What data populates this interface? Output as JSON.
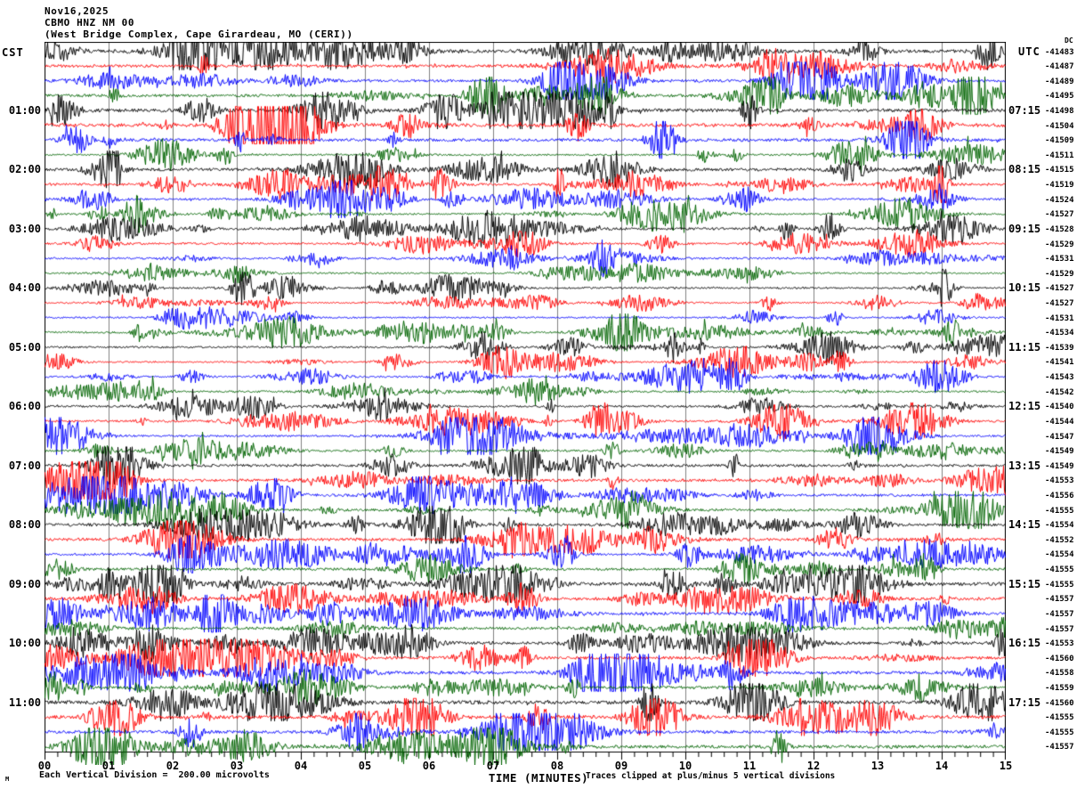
{
  "title": {
    "date": "Nov16,2025",
    "station": "CBMO HNZ NM 00",
    "location": "(West Bridge Complex, Cape Girardeau, MO (CERI))"
  },
  "left_axis": {
    "header": "CST",
    "labels": [
      {
        "row": 4,
        "text": "01:00"
      },
      {
        "row": 8,
        "text": "02:00"
      },
      {
        "row": 12,
        "text": "03:00"
      },
      {
        "row": 16,
        "text": "04:00"
      },
      {
        "row": 20,
        "text": "05:00"
      },
      {
        "row": 24,
        "text": "06:00"
      },
      {
        "row": 28,
        "text": "07:00"
      },
      {
        "row": 32,
        "text": "08:00"
      },
      {
        "row": 36,
        "text": "09:00"
      },
      {
        "row": 40,
        "text": "10:00"
      },
      {
        "row": 44,
        "text": "11:00"
      }
    ]
  },
  "right_axis": {
    "header": "UTC",
    "dc_header": "DC",
    "labels": [
      {
        "row": 4,
        "text": "07:15"
      },
      {
        "row": 8,
        "text": "08:15"
      },
      {
        "row": 12,
        "text": "09:15"
      },
      {
        "row": 16,
        "text": "10:15"
      },
      {
        "row": 20,
        "text": "11:15"
      },
      {
        "row": 24,
        "text": "12:15"
      },
      {
        "row": 28,
        "text": "13:15"
      },
      {
        "row": 32,
        "text": "14:15"
      },
      {
        "row": 36,
        "text": "15:15"
      },
      {
        "row": 40,
        "text": "16:15"
      },
      {
        "row": 44,
        "text": "17:15"
      }
    ]
  },
  "x_axis": {
    "tick_labels": [
      "00",
      "01",
      "02",
      "03",
      "04",
      "05",
      "06",
      "07",
      "08",
      "09",
      "10",
      "11",
      "12",
      "13",
      "14",
      "15"
    ],
    "label": "TIME (MINUTES)"
  },
  "footer": {
    "watermark": "M",
    "scale_note": "Each Vertical Division =  200.00 microvolts",
    "clip_note": "Traces clipped at plus/minus 5 vertical divisions"
  },
  "colors": {
    "trace_cycle": [
      "#000000",
      "#ff0000",
      "#0000ff",
      "#006400"
    ],
    "gridline": "#808080",
    "border": "#000000"
  },
  "chart_data": {
    "type": "line",
    "subtype": "helicorder-seismogram",
    "x_range_minutes": [
      0,
      15
    ],
    "minutes_per_row": 15,
    "rows_total": 48,
    "grid": "vertical gridlines at each minute",
    "legend_position": "none",
    "rows": [
      {
        "color": "#000000",
        "dc": -41483,
        "activity": 1.6
      },
      {
        "color": "#ff0000",
        "dc": -41487,
        "activity": 1.4
      },
      {
        "color": "#0000ff",
        "dc": -41489,
        "activity": 1.3
      },
      {
        "color": "#006400",
        "dc": -41495,
        "activity": 1.4
      },
      {
        "color": "#000000",
        "dc": -41498,
        "activity": 1.7
      },
      {
        "color": "#ff0000",
        "dc": -41504,
        "activity": 1.8
      },
      {
        "color": "#0000ff",
        "dc": -41509,
        "activity": 1.5
      },
      {
        "color": "#006400",
        "dc": -41511,
        "activity": 0.9
      },
      {
        "color": "#000000",
        "dc": -41515,
        "activity": 1.5
      },
      {
        "color": "#ff0000",
        "dc": -41519,
        "activity": 1.3
      },
      {
        "color": "#0000ff",
        "dc": -41524,
        "activity": 1.0
      },
      {
        "color": "#006400",
        "dc": -41527,
        "activity": 0.9
      },
      {
        "color": "#000000",
        "dc": -41528,
        "activity": 1.2
      },
      {
        "color": "#ff0000",
        "dc": -41529,
        "activity": 1.0
      },
      {
        "color": "#0000ff",
        "dc": -41531,
        "activity": 1.0
      },
      {
        "color": "#006400",
        "dc": -41529,
        "activity": 0.8
      },
      {
        "color": "#000000",
        "dc": -41527,
        "activity": 0.9
      },
      {
        "color": "#ff0000",
        "dc": -41527,
        "activity": 0.7
      },
      {
        "color": "#0000ff",
        "dc": -41531,
        "activity": 0.8
      },
      {
        "color": "#006400",
        "dc": -41534,
        "activity": 0.9
      },
      {
        "color": "#000000",
        "dc": -41539,
        "activity": 0.9
      },
      {
        "color": "#ff0000",
        "dc": -41541,
        "activity": 0.7
      },
      {
        "color": "#0000ff",
        "dc": -41543,
        "activity": 0.8
      },
      {
        "color": "#006400",
        "dc": -41542,
        "activity": 0.9
      },
      {
        "color": "#000000",
        "dc": -41540,
        "activity": 1.0
      },
      {
        "color": "#ff0000",
        "dc": -41544,
        "activity": 1.1
      },
      {
        "color": "#0000ff",
        "dc": -41547,
        "activity": 1.0
      },
      {
        "color": "#006400",
        "dc": -41549,
        "activity": 1.0
      },
      {
        "color": "#000000",
        "dc": -41549,
        "activity": 1.3
      },
      {
        "color": "#ff0000",
        "dc": -41553,
        "activity": 1.4
      },
      {
        "color": "#0000ff",
        "dc": -41556,
        "activity": 1.3
      },
      {
        "color": "#006400",
        "dc": -41555,
        "activity": 1.2
      },
      {
        "color": "#000000",
        "dc": -41554,
        "activity": 1.4
      },
      {
        "color": "#ff0000",
        "dc": -41552,
        "activity": 1.5
      },
      {
        "color": "#0000ff",
        "dc": -41554,
        "activity": 1.2
      },
      {
        "color": "#006400",
        "dc": -41555,
        "activity": 1.3
      },
      {
        "color": "#000000",
        "dc": -41555,
        "activity": 1.6
      },
      {
        "color": "#ff0000",
        "dc": -41557,
        "activity": 1.5
      },
      {
        "color": "#0000ff",
        "dc": -41557,
        "activity": 1.4
      },
      {
        "color": "#006400",
        "dc": -41557,
        "activity": 1.3
      },
      {
        "color": "#000000",
        "dc": -41553,
        "activity": 1.5
      },
      {
        "color": "#ff0000",
        "dc": -41560,
        "activity": 1.4
      },
      {
        "color": "#0000ff",
        "dc": -41558,
        "activity": 1.5
      },
      {
        "color": "#006400",
        "dc": -41559,
        "activity": 1.4
      },
      {
        "color": "#000000",
        "dc": -41560,
        "activity": 1.8
      },
      {
        "color": "#ff0000",
        "dc": -41555,
        "activity": 1.7
      },
      {
        "color": "#0000ff",
        "dc": -41555,
        "activity": 1.5
      },
      {
        "color": "#006400",
        "dc": -41557,
        "activity": 1.6
      }
    ]
  }
}
